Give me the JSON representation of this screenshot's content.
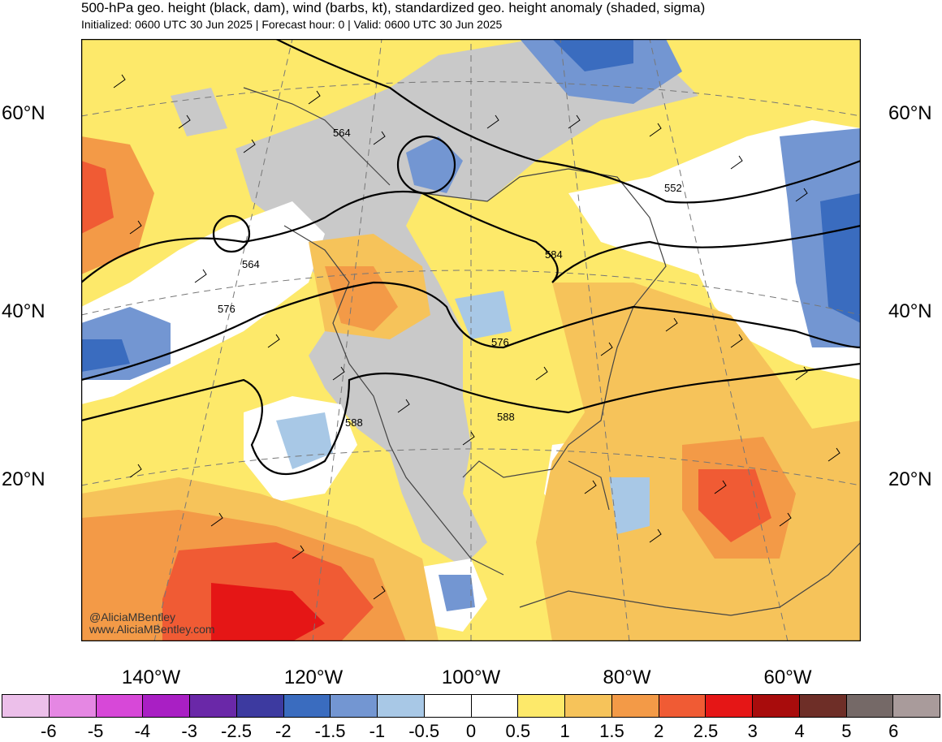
{
  "title": "500-hPa geo. height (black, dam), wind (barbs, kt), standardized geo. height anomaly (shaded, sigma)",
  "subtitle": "Initialized: 0600 UTC 30 Jun 2025 | Forecast hour: 0 | Valid: 0600 UTC 30 Jun 2025",
  "latitude_labels": [
    "60°N",
    "40°N",
    "20°N"
  ],
  "longitude_labels": [
    "140°W",
    "120°W",
    "100°W",
    "80°W",
    "60°W"
  ],
  "contour_labels": [
    "564",
    "552",
    "564",
    "584",
    "576",
    "576",
    "588",
    "588"
  ],
  "credits": {
    "handle": "@AliciaMBentley",
    "website": "www.AliciaMBentley.com"
  },
  "colorbar": {
    "labels": [
      "-6",
      "-5",
      "-4",
      "-3",
      "-2.5",
      "-2",
      "-1.5",
      "-1",
      "-0.5",
      "0",
      "0.5",
      "1",
      "1.5",
      "2",
      "2.5",
      "3",
      "4",
      "5",
      "6"
    ],
    "colors": [
      "#ecbfea",
      "#e587e3",
      "#d748d8",
      "#a91fc4",
      "#6a28a8",
      "#3d3aa0",
      "#3a6cbf",
      "#7396d2",
      "#a8c8e6",
      "#ffffff",
      "#ffffff",
      "#fde96a",
      "#f6c35a",
      "#f39a47",
      "#f05b34",
      "#e51616",
      "#a80c0c",
      "#6e2e27",
      "#756967",
      "#a99b9b"
    ]
  },
  "map_colors": {
    "neutral_land": "#c9c9c9",
    "positive_0_5": "#fde96a",
    "positive_1": "#f6c35a",
    "positive_1_5": "#f39a47",
    "positive_2": "#f05b34",
    "positive_2_5": "#e51616",
    "negative_0_5": "#a8c8e6",
    "negative_1": "#7396d2",
    "negative_1_5": "#3a6cbf",
    "negative_2": "#3d3aa0"
  }
}
